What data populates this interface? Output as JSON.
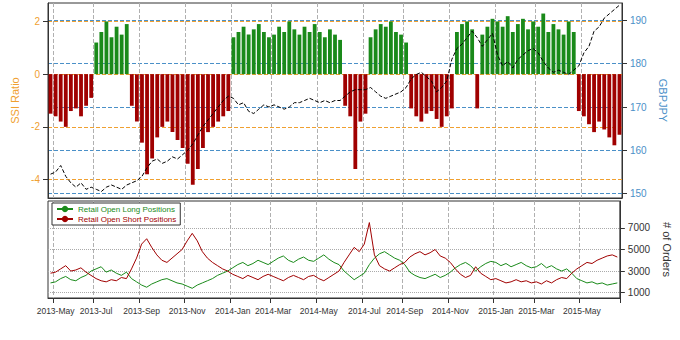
{
  "chart_data": [
    {
      "type": "bar",
      "ylabel": "SSI Ratio",
      "y2label": "GBPJPY",
      "categories": [
        null,
        "2013-May",
        null,
        null,
        null,
        null,
        null,
        null,
        null,
        "2013-Jul",
        null,
        null,
        null,
        null,
        null,
        null,
        null,
        null,
        "2013-Sep",
        null,
        null,
        null,
        null,
        null,
        null,
        null,
        null,
        "2013-Nov",
        null,
        null,
        null,
        null,
        null,
        null,
        null,
        null,
        "2014-Jan",
        null,
        null,
        null,
        null,
        null,
        null,
        null,
        "2014-Mar",
        null,
        null,
        null,
        null,
        null,
        null,
        null,
        null,
        "2014-May",
        null,
        null,
        null,
        null,
        null,
        null,
        null,
        null,
        "2014-Jul",
        null,
        null,
        null,
        null,
        null,
        null,
        null,
        "2014-Sep",
        null,
        null,
        null,
        null,
        null,
        null,
        null,
        null,
        "2014-Nov",
        null,
        null,
        null,
        null,
        null,
        null,
        null,
        null,
        "2015-Jan",
        null,
        null,
        null,
        null,
        null,
        null,
        null,
        "2015-Mar",
        null,
        null,
        null,
        null,
        null,
        null,
        null,
        null,
        "2015-May",
        null,
        null,
        null,
        null,
        null,
        null,
        null
      ],
      "series": [
        {
          "name": "SSI Ratio",
          "type": "bar",
          "values": [
            -1.5,
            -1.6,
            -1.8,
            -2.0,
            -1.4,
            -1.3,
            -1.6,
            -1.2,
            -0.9,
            1.2,
            1.6,
            2.0,
            1.4,
            1.8,
            1.5,
            1.9,
            -1.2,
            -1.8,
            -2.6,
            -3.8,
            -3.2,
            -2.4,
            -2.0,
            -1.8,
            -2.2,
            -2.5,
            -2.8,
            -3.4,
            -4.2,
            -3.6,
            -2.8,
            -2.2,
            -2.0,
            -1.8,
            -1.6,
            -1.4,
            1.4,
            1.6,
            1.8,
            1.5,
            1.7,
            1.9,
            1.6,
            1.4,
            1.5,
            1.8,
            1.6,
            2.0,
            1.7,
            1.5,
            1.8,
            1.6,
            1.9,
            1.6,
            1.4,
            1.7,
            1.5,
            1.3,
            -1.2,
            -1.6,
            -3.6,
            -1.8,
            -1.5,
            1.4,
            1.7,
            1.9,
            1.8,
            2.0,
            1.6,
            1.5,
            1.2,
            -1.3,
            -1.6,
            -1.8,
            -1.5,
            -1.4,
            -1.7,
            -2.0,
            -1.6,
            -1.3,
            1.6,
            1.9,
            2.0,
            1.7,
            -1.3,
            1.5,
            1.8,
            2.1,
            2.0,
            1.8,
            2.2,
            1.6,
            1.9,
            2.1,
            1.7,
            2.0,
            1.8,
            2.3,
            1.6,
            1.9,
            1.7,
            1.5,
            2.0,
            1.6,
            -1.4,
            -1.6,
            -1.9,
            -2.2,
            -1.8,
            -2.1,
            -2.4,
            -2.7,
            -2.3
          ],
          "colors": [
            "#a00000",
            "#a00000",
            "#a00000",
            "#a00000",
            "#a00000",
            "#a00000",
            "#a00000",
            "#a00000",
            "#a00000",
            "#1a8a1a",
            "#1a8a1a",
            "#1a8a1a",
            "#1a8a1a",
            "#1a8a1a",
            "#1a8a1a",
            "#1a8a1a",
            "#a00000",
            "#a00000",
            "#a00000",
            "#a00000",
            "#a00000",
            "#a00000",
            "#a00000",
            "#a00000",
            "#a00000",
            "#a00000",
            "#a00000",
            "#a00000",
            "#a00000",
            "#a00000",
            "#a00000",
            "#a00000",
            "#a00000",
            "#a00000",
            "#a00000",
            "#a00000",
            "#1a8a1a",
            "#1a8a1a",
            "#1a8a1a",
            "#1a8a1a",
            "#1a8a1a",
            "#1a8a1a",
            "#1a8a1a",
            "#1a8a1a",
            "#1a8a1a",
            "#1a8a1a",
            "#1a8a1a",
            "#1a8a1a",
            "#1a8a1a",
            "#1a8a1a",
            "#1a8a1a",
            "#1a8a1a",
            "#1a8a1a",
            "#1a8a1a",
            "#1a8a1a",
            "#1a8a1a",
            "#1a8a1a",
            "#1a8a1a",
            "#a00000",
            "#a00000",
            "#a00000",
            "#a00000",
            "#a00000",
            "#1a8a1a",
            "#1a8a1a",
            "#1a8a1a",
            "#1a8a1a",
            "#1a8a1a",
            "#1a8a1a",
            "#1a8a1a",
            "#1a8a1a",
            "#a00000",
            "#a00000",
            "#a00000",
            "#a00000",
            "#a00000",
            "#a00000",
            "#a00000",
            "#a00000",
            "#a00000",
            "#1a8a1a",
            "#1a8a1a",
            "#1a8a1a",
            "#1a8a1a",
            "#a00000",
            "#1a8a1a",
            "#1a8a1a",
            "#1a8a1a",
            "#1a8a1a",
            "#1a8a1a",
            "#1a8a1a",
            "#1a8a1a",
            "#1a8a1a",
            "#1a8a1a",
            "#1a8a1a",
            "#1a8a1a",
            "#1a8a1a",
            "#1a8a1a",
            "#1a8a1a",
            "#1a8a1a",
            "#1a8a1a",
            "#1a8a1a",
            "#1a8a1a",
            "#1a8a1a",
            "#a00000",
            "#a00000",
            "#a00000",
            "#a00000",
            "#a00000",
            "#a00000",
            "#a00000",
            "#a00000",
            "#a00000"
          ]
        },
        {
          "name": "GBPJPY",
          "type": "line",
          "axis": "y2",
          "color": "#000000",
          "line_style": "dashed",
          "values": [
            154.5,
            155.0,
            156.5,
            154.0,
            152.5,
            151.5,
            152.5,
            151.0,
            151.5,
            151.0,
            150.5,
            151.5,
            152.0,
            151.5,
            151.0,
            152.0,
            152.5,
            153.0,
            154.0,
            156.0,
            157.5,
            158.0,
            157.0,
            157.5,
            158.5,
            158.0,
            159.0,
            160.0,
            161.5,
            163.5,
            165.5,
            167.0,
            168.5,
            170.0,
            171.5,
            172.5,
            172.0,
            170.5,
            171.0,
            169.0,
            168.5,
            169.5,
            170.5,
            170.0,
            170.5,
            170.0,
            169.5,
            170.0,
            171.0,
            171.0,
            171.5,
            172.0,
            171.5,
            171.0,
            171.5,
            171.0,
            171.5,
            171.5,
            172.5,
            173.5,
            174.0,
            174.0,
            174.0,
            174.5,
            173.5,
            172.5,
            172.0,
            172.5,
            173.0,
            173.5,
            174.5,
            176.5,
            177.5,
            178.0,
            177.0,
            176.0,
            173.5,
            174.5,
            176.0,
            181.0,
            183.5,
            184.5,
            186.0,
            187.5,
            186.0,
            184.0,
            185.5,
            187.0,
            182.0,
            179.5,
            180.5,
            179.0,
            181.0,
            182.0,
            183.0,
            183.5,
            182.5,
            180.5,
            179.0,
            178.0,
            178.5,
            178.0,
            177.5,
            178.5,
            179.5,
            182.5,
            184.0,
            187.5,
            188.5,
            190.5,
            191.5,
            192.5,
            193.5
          ]
        }
      ],
      "ylim": [
        -4.7,
        2.7
      ],
      "yticks": [
        -4,
        -2,
        0,
        2
      ],
      "y2lim": [
        149,
        194
      ],
      "y2ticks": [
        150,
        160,
        170,
        180,
        190
      ],
      "grid": true,
      "tick_labels": "y"
    },
    {
      "type": "line",
      "y2label": "# of Orders",
      "categories": [
        null,
        "2013-May",
        null,
        null,
        null,
        null,
        null,
        null,
        null,
        "2013-Jul",
        null,
        null,
        null,
        null,
        null,
        null,
        null,
        null,
        "2013-Sep",
        null,
        null,
        null,
        null,
        null,
        null,
        null,
        null,
        "2013-Nov",
        null,
        null,
        null,
        null,
        null,
        null,
        null,
        null,
        "2014-Jan",
        null,
        null,
        null,
        null,
        null,
        null,
        null,
        "2014-Mar",
        null,
        null,
        null,
        null,
        null,
        null,
        null,
        null,
        "2014-May",
        null,
        null,
        null,
        null,
        null,
        null,
        null,
        null,
        "2014-Jul",
        null,
        null,
        null,
        null,
        null,
        null,
        null,
        "2014-Sep",
        null,
        null,
        null,
        null,
        null,
        null,
        null,
        null,
        "2014-Nov",
        null,
        null,
        null,
        null,
        null,
        null,
        null,
        null,
        "2015-Jan",
        null,
        null,
        null,
        null,
        null,
        null,
        null,
        "2015-Mar",
        null,
        null,
        null,
        null,
        null,
        null,
        null,
        null,
        "2015-May",
        null,
        null,
        null,
        null,
        null,
        null,
        null
      ],
      "series": [
        {
          "name": "Retail Open Long Positions",
          "axis": "y2",
          "color": "#1a8a1a",
          "values": [
            1900,
            2000,
            2300,
            2500,
            2200,
            2100,
            2400,
            2600,
            3000,
            3200,
            3400,
            2900,
            3100,
            2800,
            2600,
            2900,
            2300,
            2000,
            1700,
            1500,
            1800,
            2000,
            2200,
            2300,
            2100,
            1900,
            1800,
            1600,
            1400,
            1700,
            1900,
            2100,
            2300,
            2600,
            2800,
            3000,
            3300,
            3600,
            3800,
            3500,
            3700,
            4000,
            3800,
            3600,
            3900,
            4200,
            4400,
            4000,
            3800,
            4100,
            4300,
            4000,
            3900,
            4200,
            4500,
            4100,
            3800,
            3600,
            3000,
            2600,
            2200,
            2500,
            2800,
            3600,
            4200,
            4600,
            4800,
            4500,
            4200,
            4000,
            3600,
            2900,
            2600,
            2400,
            2300,
            2500,
            2700,
            2400,
            2600,
            2900,
            3300,
            3600,
            3800,
            3500,
            3000,
            3400,
            3700,
            3900,
            3800,
            3500,
            3700,
            3400,
            3600,
            3800,
            3500,
            3300,
            3400,
            3700,
            3300,
            3500,
            3200,
            3000,
            3200,
            2800,
            2300,
            2100,
            1900,
            2000,
            1800,
            1900,
            1700,
            1800,
            1900
          ]
        },
        {
          "name": "Retail Open Short Positions",
          "axis": "y2",
          "color": "#a00000",
          "values": [
            2800,
            2900,
            3200,
            3500,
            3000,
            3100,
            3300,
            2900,
            2600,
            2300,
            2100,
            2000,
            2200,
            2100,
            2400,
            2300,
            3200,
            4200,
            5500,
            6000,
            5200,
            4500,
            4000,
            3800,
            4200,
            4600,
            5000,
            5800,
            6500,
            5800,
            4800,
            4200,
            3800,
            3500,
            3200,
            3000,
            2700,
            2500,
            2300,
            2600,
            2400,
            2200,
            2500,
            2700,
            2500,
            2300,
            2100,
            2400,
            2600,
            2400,
            2200,
            2500,
            2600,
            2300,
            2100,
            2400,
            2700,
            3000,
            3800,
            4500,
            5200,
            4800,
            5500,
            7500,
            4500,
            3500,
            3200,
            3000,
            3300,
            3600,
            3800,
            4300,
            4600,
            4800,
            4500,
            4700,
            5000,
            4400,
            4200,
            3800,
            3200,
            2700,
            2400,
            2600,
            3400,
            2800,
            2500,
            2200,
            2300,
            2100,
            1900,
            2000,
            2200,
            2000,
            2100,
            1900,
            2000,
            1800,
            2100,
            1900,
            2200,
            2400,
            2300,
            2800,
            3200,
            3500,
            3800,
            3700,
            4000,
            4200,
            4400,
            4500,
            4300
          ]
        }
      ],
      "y2lim": [
        500,
        9500
      ],
      "y2ticks": [
        1000,
        3000,
        5000,
        7000
      ],
      "grid": true,
      "legend": "upper left"
    }
  ]
}
